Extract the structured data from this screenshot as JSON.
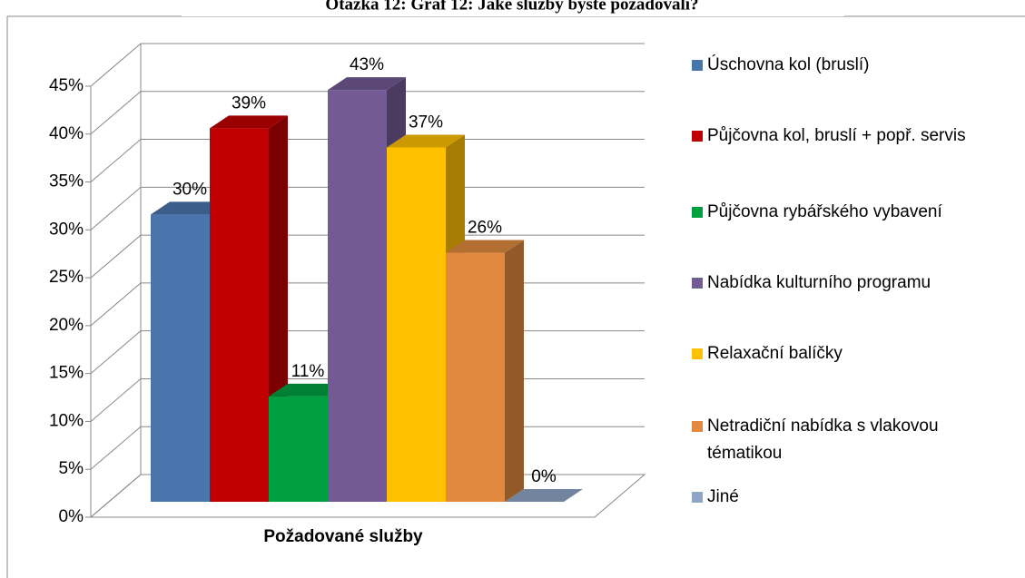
{
  "chart_data": {
    "type": "bar3d",
    "title": "Otázka 12:  Graf 12: Jaké služby byste požadovali?",
    "x_label": "Požadované služby",
    "categories": [
      "Požadované služby"
    ],
    "series": [
      {
        "name": "Úschovna kol (bruslí)",
        "color": "#4a74ac",
        "values": [
          30
        ],
        "value_labels": [
          "30%"
        ]
      },
      {
        "name": "Půjčovna kol, bruslí + popř. servis",
        "color": "#c00000",
        "values": [
          39
        ],
        "value_labels": [
          "39%"
        ]
      },
      {
        "name": "Půjčovna rybářského vybavení",
        "color": "#00a040",
        "values": [
          11
        ],
        "value_labels": [
          "11%"
        ]
      },
      {
        "name": "Nabídka kulturního programu",
        "color": "#735a95",
        "values": [
          43
        ],
        "value_labels": [
          "43%"
        ]
      },
      {
        "name": "Relaxační balíčky",
        "color": "#ffc000",
        "values": [
          37
        ],
        "value_labels": [
          "37%"
        ]
      },
      {
        "name": "Netradiční nabídka s vlakovou tématikou",
        "color": "#e0893f",
        "values": [
          26
        ],
        "value_labels": [
          "26%"
        ]
      },
      {
        "name": "Jiné",
        "color": "#8fa5c8",
        "values": [
          0
        ],
        "value_labels": [
          "0%"
        ]
      }
    ],
    "ylim": [
      0,
      45
    ],
    "yticks": [
      {
        "value": 0,
        "label": "0%"
      },
      {
        "value": 5,
        "label": "5%"
      },
      {
        "value": 10,
        "label": "10%"
      },
      {
        "value": 15,
        "label": "15%"
      },
      {
        "value": 20,
        "label": "20%"
      },
      {
        "value": 25,
        "label": "25%"
      },
      {
        "value": 30,
        "label": "30%"
      },
      {
        "value": 35,
        "label": "35%"
      },
      {
        "value": 40,
        "label": "40%"
      },
      {
        "value": 45,
        "label": "45%"
      }
    ],
    "grid": true,
    "legend": "right"
  }
}
